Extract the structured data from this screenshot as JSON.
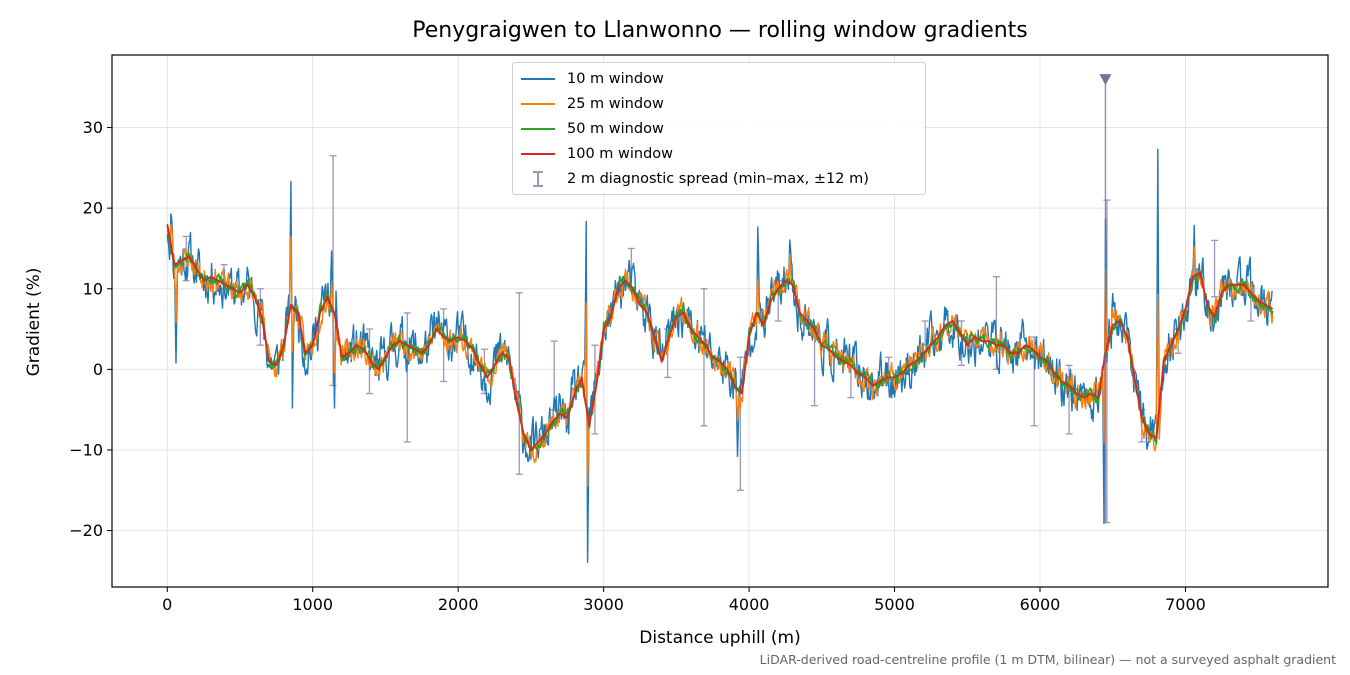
{
  "chart_data": {
    "type": "line",
    "title": "Penygraigwen to Llanwonno — rolling window gradients",
    "xlabel": "Distance uphill (m)",
    "ylabel": "Gradient (%)",
    "xlim": [
      -380,
      7980
    ],
    "ylim": [
      -27,
      39
    ],
    "xticks": [
      0,
      1000,
      2000,
      3000,
      4000,
      5000,
      6000,
      7000
    ],
    "yticks": [
      -20,
      -10,
      0,
      10,
      20,
      30
    ],
    "xtick_labels": [
      "0",
      "1000",
      "2000",
      "3000",
      "4000",
      "5000",
      "6000",
      "7000"
    ],
    "ytick_labels": [
      "−20",
      "−10",
      "0",
      "10",
      "20",
      "30"
    ],
    "grid": true,
    "legend_position": "upper center",
    "note": "LiDAR-derived road-centreline profile (1 m DTM, bilinear) — not a surveyed asphalt gradient",
    "trend": {
      "x": [
        0,
        50,
        100,
        150,
        200,
        250,
        300,
        350,
        400,
        450,
        500,
        550,
        600,
        650,
        700,
        750,
        800,
        850,
        900,
        950,
        1000,
        1050,
        1100,
        1150,
        1200,
        1250,
        1300,
        1350,
        1400,
        1450,
        1500,
        1550,
        1600,
        1650,
        1700,
        1750,
        1800,
        1850,
        1900,
        1950,
        2000,
        2050,
        2100,
        2150,
        2200,
        2250,
        2300,
        2350,
        2400,
        2450,
        2500,
        2550,
        2600,
        2650,
        2700,
        2750,
        2800,
        2850,
        2900,
        2950,
        3000,
        3050,
        3100,
        3150,
        3200,
        3250,
        3300,
        3350,
        3400,
        3450,
        3500,
        3550,
        3600,
        3650,
        3700,
        3750,
        3800,
        3850,
        3900,
        3950,
        4000,
        4050,
        4100,
        4150,
        4200,
        4250,
        4300,
        4350,
        4400,
        4450,
        4500,
        4550,
        4600,
        4650,
        4700,
        4750,
        4800,
        4850,
        4900,
        4950,
        5000,
        5050,
        5100,
        5150,
        5200,
        5250,
        5300,
        5350,
        5400,
        5450,
        5500,
        5550,
        5600,
        5650,
        5700,
        5750,
        5800,
        5850,
        5900,
        5950,
        6000,
        6050,
        6100,
        6150,
        6200,
        6250,
        6300,
        6350,
        6400,
        6450,
        6500,
        6550,
        6600,
        6650,
        6700,
        6750,
        6800,
        6850,
        6900,
        6950,
        7000,
        7050,
        7100,
        7150,
        7200,
        7250,
        7300,
        7350,
        7400,
        7450,
        7500,
        7550,
        7600
      ],
      "y": [
        18,
        13,
        13.5,
        14,
        12.5,
        11,
        11.5,
        11,
        10.5,
        10,
        9.5,
        10.5,
        9,
        6.5,
        1,
        0.5,
        3,
        8,
        7,
        2,
        3,
        7,
        9,
        7,
        1.5,
        2,
        3,
        2.5,
        1,
        0,
        1.5,
        3,
        3.5,
        3,
        2.5,
        2,
        3,
        5,
        4,
        3.5,
        4,
        3.5,
        2.5,
        0.5,
        -1,
        0.5,
        2,
        1.5,
        -4,
        -8,
        -10,
        -9,
        -8,
        -6.5,
        -5.5,
        -6,
        -3,
        -1,
        -7,
        -2,
        5,
        6.5,
        10,
        11,
        10,
        8,
        7,
        4,
        1,
        4,
        6.5,
        7,
        5,
        4,
        3,
        1.5,
        1,
        0,
        -2,
        -3,
        4,
        7,
        5.5,
        8.5,
        10,
        11,
        10.5,
        7,
        6,
        5,
        3,
        2.5,
        1.5,
        1,
        0.5,
        -0.5,
        -1,
        -2,
        -1.5,
        -1,
        -1,
        -0.5,
        0.5,
        1,
        2,
        3,
        4,
        5.5,
        6,
        4.5,
        3,
        4,
        3.5,
        3.5,
        3,
        3,
        2,
        2,
        3,
        2.5,
        1.5,
        1,
        -0.5,
        -1.5,
        -2,
        -3,
        -3.5,
        -3,
        -3.5,
        2,
        5.5,
        6,
        4,
        -1,
        -6,
        -8,
        -8.5,
        1,
        3,
        5,
        7.5,
        11.5,
        12,
        8,
        6.5,
        9.5,
        10.5,
        10.5,
        10.5,
        9.5,
        8.5,
        8,
        7.5
      ]
    },
    "spikes": {
      "x": [
        30,
        60,
        850,
        860,
        1130,
        1150,
        2880,
        2890,
        3920,
        4060,
        4280,
        6440,
        6450,
        6500,
        6810,
        6820,
        7060
      ],
      "y": [
        20,
        2,
        24.5,
        -4,
        12,
        -7,
        17.5,
        -24,
        -9,
        17.5,
        15.5,
        -18.5,
        18.5,
        8,
        24.5,
        -9,
        17
      ]
    },
    "series": [
      {
        "name": "10 m window",
        "color": "#1f77b4",
        "noise": 2.3,
        "seed": 11,
        "width": 1.4
      },
      {
        "name": "25 m window",
        "color": "#ff7f0e",
        "noise": 1.3,
        "seed": 23,
        "width": 1.4
      },
      {
        "name": "50 m window",
        "color": "#2ca02c",
        "noise": 0.6,
        "seed": 37,
        "width": 1.6
      },
      {
        "name": "100 m window",
        "color": "#d62728",
        "noise": 0.0,
        "seed": 41,
        "width": 1.8
      }
    ],
    "error_bars": {
      "label": "2 m diagnostic spread (min–max, ±12 m)",
      "color": "#9b96bc",
      "x": [
        130,
        390,
        640,
        1140,
        1390,
        1650,
        1900,
        2180,
        2420,
        2660,
        2940,
        3190,
        3440,
        3690,
        3940,
        4200,
        4450,
        4700,
        4960,
        5210,
        5460,
        5700,
        5960,
        6200,
        6460,
        6700,
        6950,
        7200,
        7450
      ],
      "low": [
        11,
        10,
        3,
        -2,
        -3,
        -9,
        -1.5,
        -3,
        -13,
        -5,
        -8,
        10,
        -1,
        -7,
        -15,
        6,
        -4.5,
        -3.5,
        -2,
        3,
        0.5,
        0,
        -7,
        -8,
        -19,
        -9,
        2,
        9,
        6
      ],
      "high": [
        16.5,
        13,
        10,
        26.5,
        5,
        7,
        7.5,
        2.5,
        9.5,
        3.5,
        3,
        15,
        5,
        10,
        1.5,
        11,
        4,
        1,
        1.5,
        6,
        6,
        11.5,
        4,
        0.5,
        21,
        -5,
        5,
        16,
        9.5
      ]
    },
    "marker": {
      "x": 6450,
      "y": 36,
      "color": "#7b6fa0"
    },
    "marker_line_bottom": -19
  }
}
